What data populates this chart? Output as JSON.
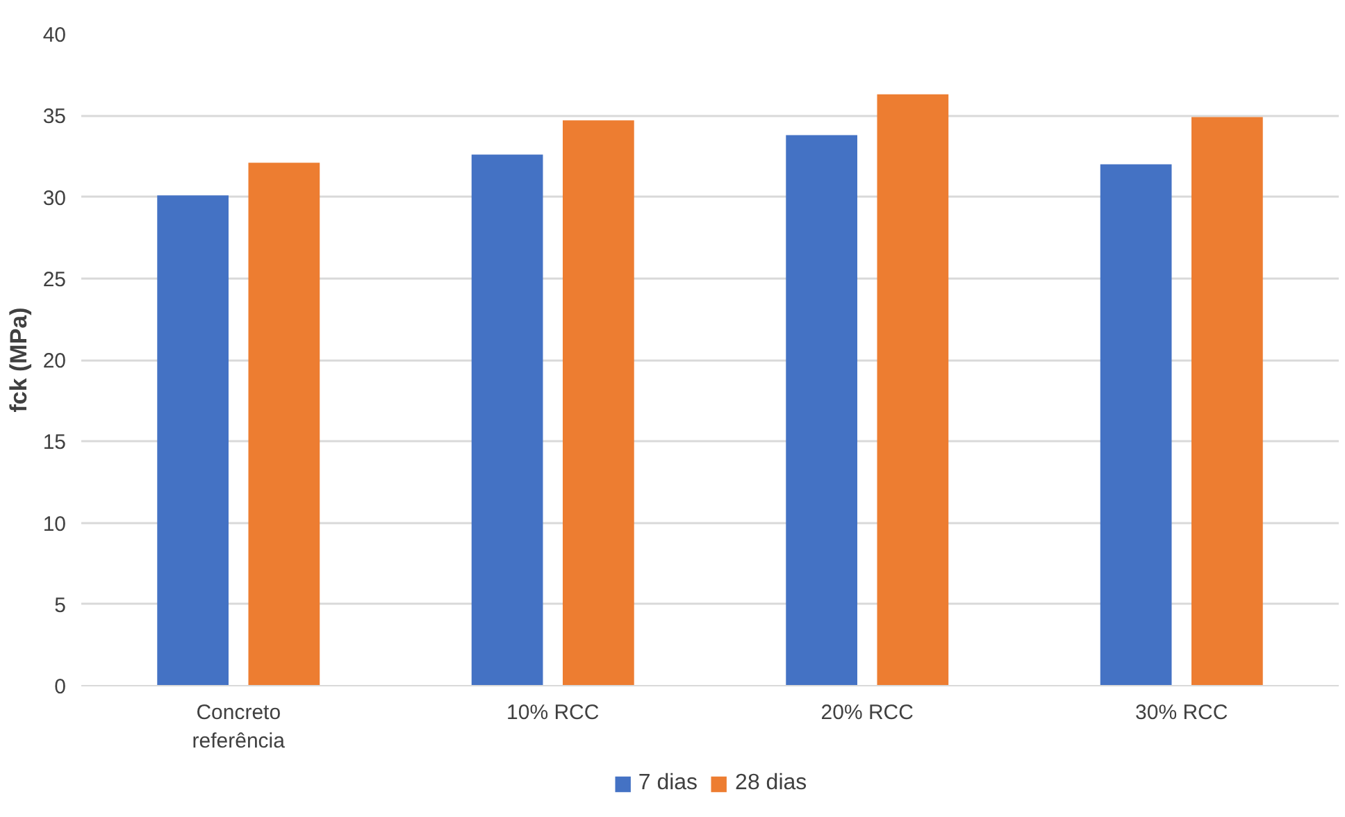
{
  "chart_data": {
    "type": "bar",
    "ylabel": "fck (MPa)",
    "categories": [
      "Concreto referência",
      "10% RCC",
      "20% RCC",
      "30% RCC"
    ],
    "series": [
      {
        "name": "7 dias",
        "color": "#4472c4",
        "values": [
          30.1,
          32.6,
          33.8,
          32.0
        ]
      },
      {
        "name": "28 dias",
        "color": "#ed7d31",
        "values": [
          32.1,
          34.7,
          36.3,
          34.9
        ]
      }
    ],
    "ylim": [
      0,
      40
    ],
    "yticks": [
      0,
      5,
      10,
      15,
      20,
      25,
      30,
      35,
      40
    ],
    "grid": "y",
    "legend": "bottom"
  }
}
